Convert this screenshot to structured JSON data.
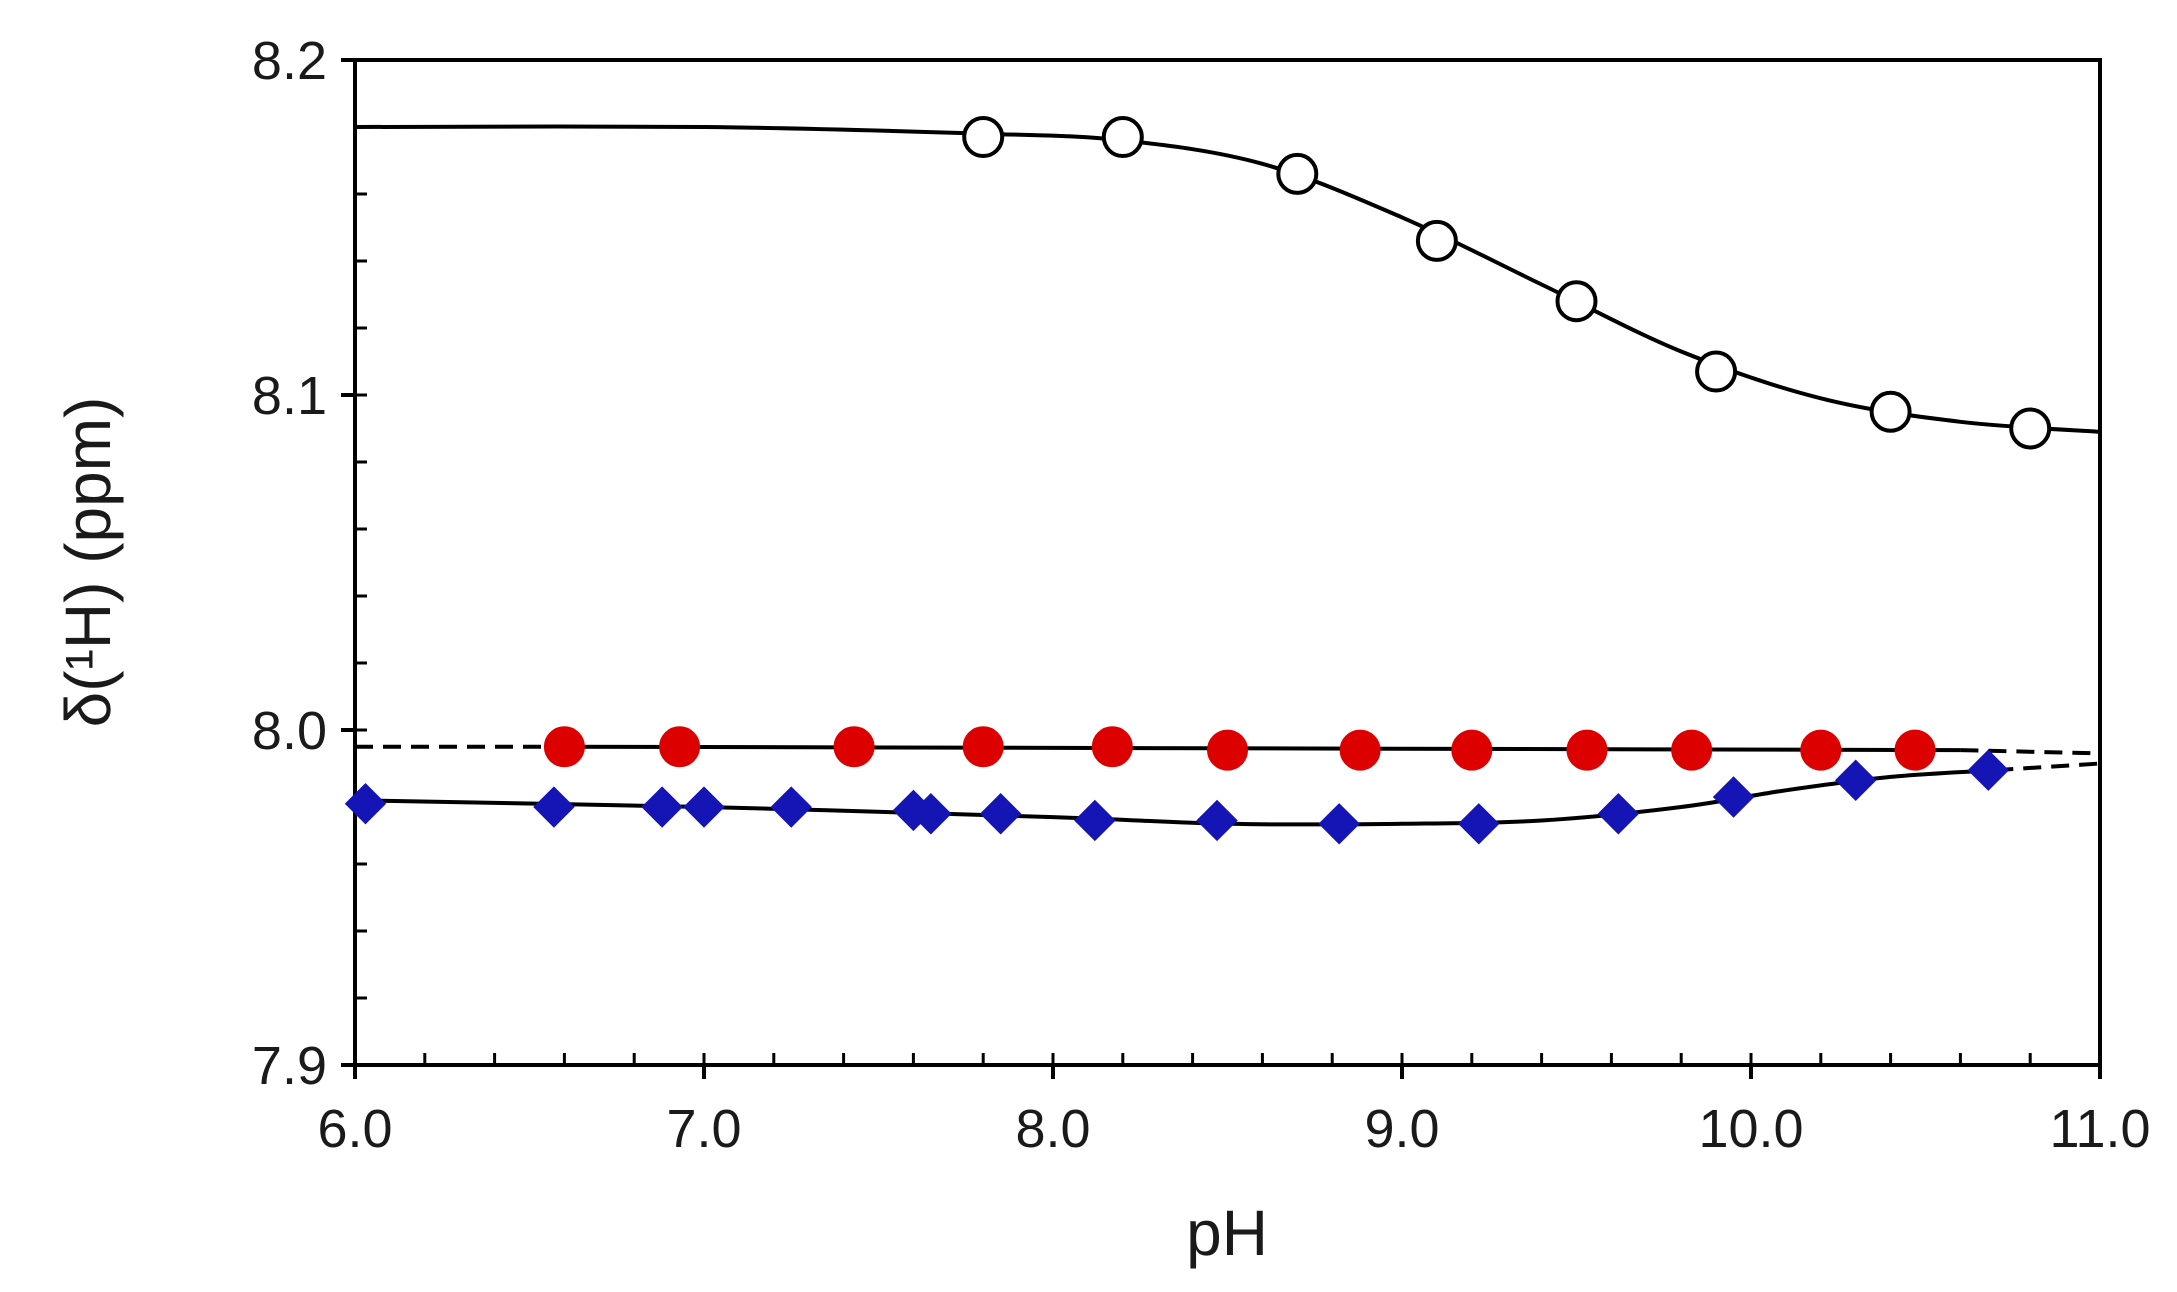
{
  "chart_data": {
    "type": "scatter",
    "title": "",
    "xlabel": "pH",
    "ylabel": "δ(¹H) (ppm)",
    "xlim": [
      6.0,
      11.0
    ],
    "ylim": [
      7.9,
      8.2
    ],
    "x_ticks": [
      6.0,
      7.0,
      8.0,
      9.0,
      10.0,
      11.0
    ],
    "x_tick_labels": [
      "6.0",
      "7.0",
      "8.0",
      "9.0",
      "10.0",
      "11.0"
    ],
    "y_ticks": [
      7.9,
      8.0,
      8.1,
      8.2
    ],
    "y_tick_labels": [
      "7.9",
      "8.0",
      "8.1",
      "8.2"
    ],
    "x_minor_step": 0.2,
    "y_minor_step": 0.02,
    "grid": false,
    "legend": null,
    "series": [
      {
        "name": "open circles",
        "marker": "circle-open",
        "color": "#000000",
        "points": [
          [
            7.8,
            8.177
          ],
          [
            8.2,
            8.177
          ],
          [
            8.7,
            8.166
          ],
          [
            9.1,
            8.146
          ],
          [
            9.5,
            8.128
          ],
          [
            9.9,
            8.107
          ],
          [
            10.4,
            8.095
          ],
          [
            10.8,
            8.09
          ]
        ],
        "fit_curve": [
          [
            6.0,
            8.18
          ],
          [
            7.0,
            8.18
          ],
          [
            7.8,
            8.178
          ],
          [
            8.2,
            8.176
          ],
          [
            8.6,
            8.169
          ],
          [
            9.0,
            8.153
          ],
          [
            9.4,
            8.133
          ],
          [
            9.8,
            8.113
          ],
          [
            10.2,
            8.099
          ],
          [
            10.6,
            8.092
          ],
          [
            11.0,
            8.089
          ]
        ],
        "fit_style": "solid"
      },
      {
        "name": "red filled circles",
        "marker": "circle-filled",
        "color": "#dd0000",
        "points": [
          [
            6.6,
            7.995
          ],
          [
            6.93,
            7.995
          ],
          [
            7.43,
            7.995
          ],
          [
            7.8,
            7.995
          ],
          [
            8.17,
            7.995
          ],
          [
            8.5,
            7.994
          ],
          [
            8.88,
            7.994
          ],
          [
            9.2,
            7.994
          ],
          [
            9.53,
            7.994
          ],
          [
            9.83,
            7.994
          ],
          [
            10.2,
            7.994
          ],
          [
            10.47,
            7.994
          ]
        ],
        "fit_curve": [
          [
            6.6,
            7.995
          ],
          [
            10.6,
            7.994
          ]
        ],
        "fit_style": "solid",
        "extrapolation": [
          [
            6.0,
            7.995
          ],
          [
            6.6,
            7.995
          ]
        ],
        "extrapolation_right": [
          [
            10.6,
            7.994
          ],
          [
            11.0,
            7.993
          ]
        ],
        "extrapolation_style": "dashed"
      },
      {
        "name": "blue diamonds",
        "marker": "diamond-filled",
        "color": "#1515b5",
        "points": [
          [
            6.03,
            7.978
          ],
          [
            6.57,
            7.977
          ],
          [
            6.88,
            7.977
          ],
          [
            7.0,
            7.977
          ],
          [
            7.25,
            7.977
          ],
          [
            7.6,
            7.976
          ],
          [
            7.65,
            7.975
          ],
          [
            7.85,
            7.975
          ],
          [
            8.12,
            7.973
          ],
          [
            8.47,
            7.973
          ],
          [
            8.82,
            7.972
          ],
          [
            9.22,
            7.972
          ],
          [
            9.62,
            7.975
          ],
          [
            9.95,
            7.98
          ],
          [
            10.3,
            7.985
          ],
          [
            10.68,
            7.988
          ]
        ],
        "fit_curve": [
          [
            6.0,
            7.979
          ],
          [
            7.0,
            7.977
          ],
          [
            8.0,
            7.974
          ],
          [
            8.5,
            7.972
          ],
          [
            9.0,
            7.972
          ],
          [
            9.4,
            7.973
          ],
          [
            9.8,
            7.977
          ],
          [
            10.1,
            7.982
          ],
          [
            10.4,
            7.986
          ],
          [
            10.7,
            7.988
          ]
        ],
        "fit_style": "solid",
        "extrapolation_right": [
          [
            10.7,
            7.988
          ],
          [
            11.0,
            7.99
          ]
        ],
        "extrapolation_style": "dashed"
      }
    ]
  }
}
